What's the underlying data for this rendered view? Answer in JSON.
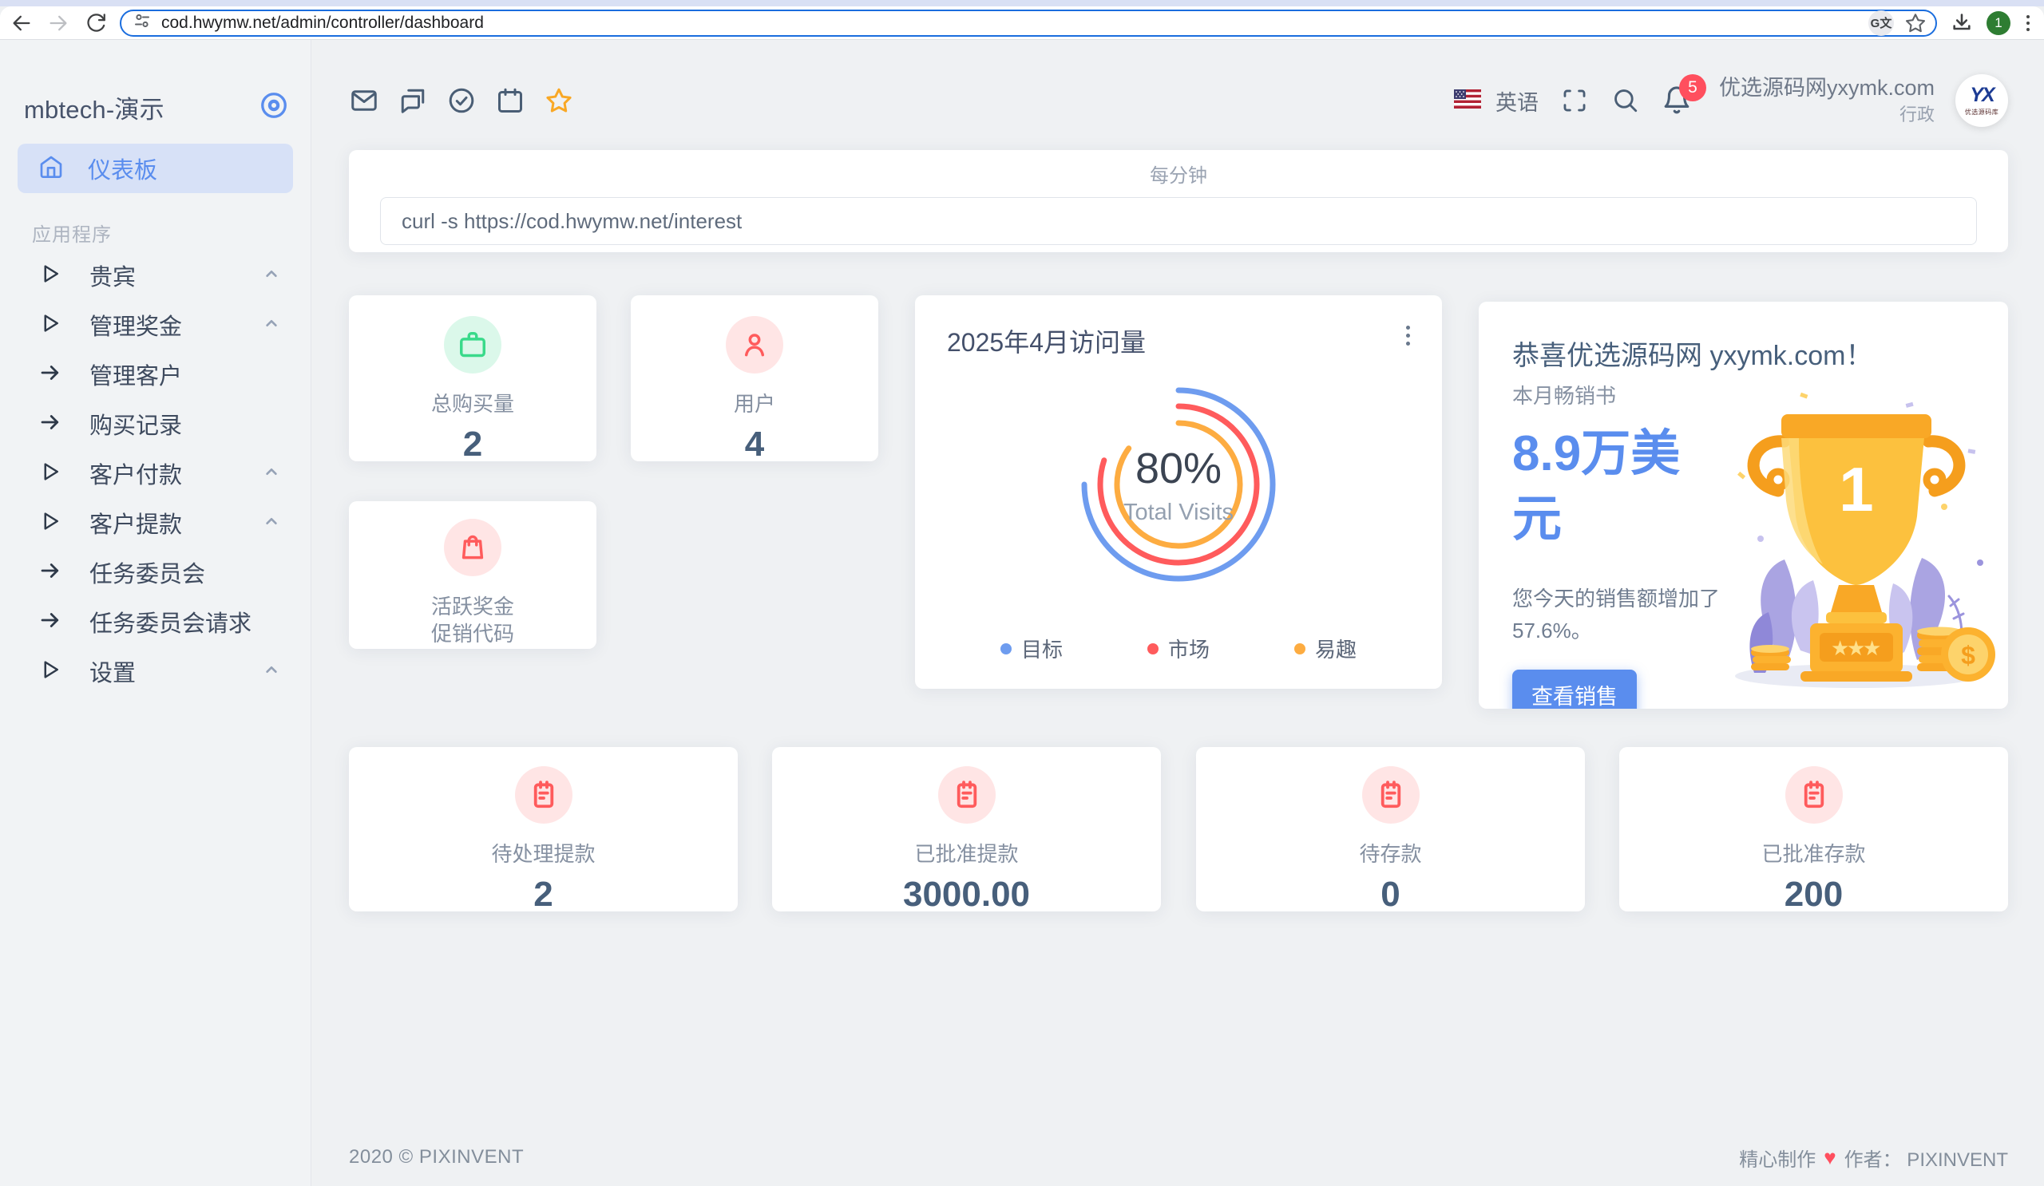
{
  "theme": {
    "primary": "#5A8DEE",
    "danger": "#FF5B5C",
    "success": "#39DA8A",
    "warning": "#FDAC41",
    "heading": "#475F7B"
  },
  "browser": {
    "url": "cod.hwymw.net/admin/controller/dashboard",
    "profile_label": "1"
  },
  "sidebar": {
    "brand": "mbtech-演示",
    "dashboard_label": "仪表板",
    "section_label": "应用程序",
    "items": [
      {
        "label": "贵宾",
        "type": "group"
      },
      {
        "label": "管理奖金",
        "type": "group"
      },
      {
        "label": "管理客户",
        "type": "link"
      },
      {
        "label": "购买记录",
        "type": "link"
      },
      {
        "label": "客户付款",
        "type": "group"
      },
      {
        "label": "客户提款",
        "type": "group"
      },
      {
        "label": "任务委员会",
        "type": "link"
      },
      {
        "label": "任务委员会请求",
        "type": "link"
      },
      {
        "label": "设置",
        "type": "group"
      }
    ]
  },
  "topbar": {
    "language": "英语",
    "notification_count": "5",
    "user": {
      "name": "优选源码网yxymk.com",
      "role": "行政",
      "avatar_monogram": "YX",
      "avatar_caption": "优选源码库"
    }
  },
  "cron": {
    "label": "每分钟",
    "command": "curl -s https://cod.hwymw.net/interest"
  },
  "stats_top": [
    {
      "label": "总购买量",
      "value": "2"
    },
    {
      "label": "用户",
      "value": "4"
    },
    {
      "label": "活跃奖金",
      "label2": "促销代码"
    }
  ],
  "chart_card": {
    "title": "2025年4月访问量"
  },
  "chart_data": {
    "type": "radialBar",
    "title": "2025年4月访问量",
    "center": {
      "value": "80%",
      "label": "Total Visits"
    },
    "series": [
      {
        "name": "目标",
        "percent": 75,
        "color": "#6E9CEF",
        "radius": 118
      },
      {
        "name": "市场",
        "percent": 80,
        "color": "#FF5B5C",
        "radius": 98
      },
      {
        "name": "易趣",
        "percent": 85,
        "color": "#FDAC41",
        "radius": 77
      }
    ],
    "legend_position": "bottom",
    "grid": false
  },
  "congrats": {
    "title": "恭喜优选源码网 yxymk.com！",
    "subtitle": "本月畅销书",
    "amount": "8.9万美元",
    "description": "您今天的销售额增加了 57.6%。",
    "button_label": "查看销售",
    "trophy_number": "1"
  },
  "stats_bottom": [
    {
      "label": "待处理提款",
      "value": "2"
    },
    {
      "label": "已批准提款",
      "value": "3000.00"
    },
    {
      "label": "待存款",
      "value": "0"
    },
    {
      "label": "已批准存款",
      "value": "200"
    }
  ],
  "footer": {
    "left": "2020 © PIXINVENT",
    "made": "精心制作",
    "by": "作者： PIXINVENT"
  }
}
